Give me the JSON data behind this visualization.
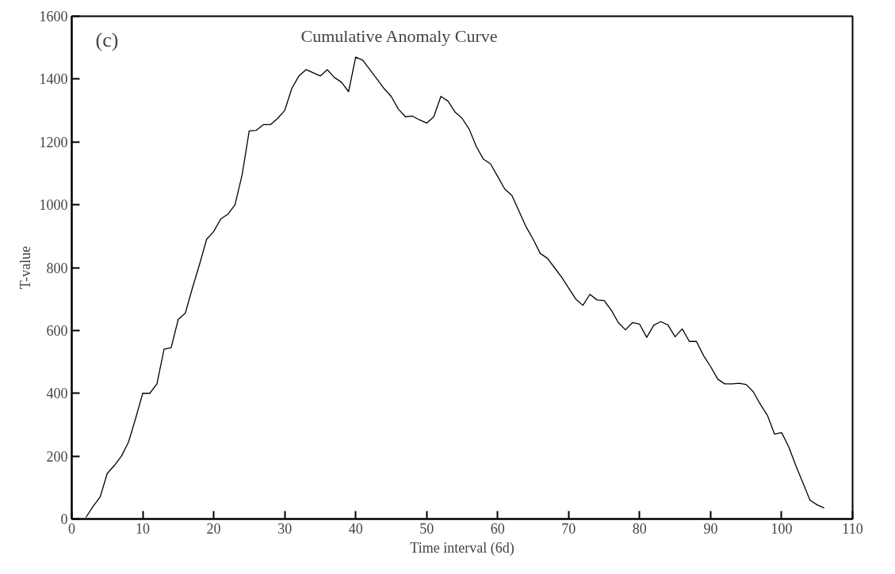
{
  "chart_data": {
    "type": "line",
    "title": "Cumulative Anomaly Curve",
    "xlabel": "Time interval (6d)",
    "ylabel": "T-value",
    "annotations": [
      "(c)"
    ],
    "x": [
      2,
      3,
      4,
      5,
      6,
      7,
      8,
      9,
      10,
      11,
      12,
      13,
      14,
      15,
      16,
      17,
      18,
      19,
      20,
      21,
      22,
      23,
      24,
      25,
      26,
      27,
      28,
      29,
      30,
      31,
      32,
      33,
      34,
      35,
      36,
      37,
      38,
      39,
      40,
      41,
      42,
      43,
      44,
      45,
      46,
      47,
      48,
      49,
      50,
      51,
      52,
      53,
      54,
      55,
      56,
      57,
      58,
      59,
      60,
      61,
      62,
      63,
      64,
      65,
      66,
      67,
      68,
      69,
      70,
      71,
      72,
      73,
      74,
      75,
      76,
      77,
      78,
      79,
      80,
      81,
      82,
      83,
      84,
      85,
      86,
      87,
      88,
      89,
      90,
      91,
      92,
      93,
      94,
      95,
      96,
      97,
      98,
      99,
      100,
      101,
      102,
      103,
      104,
      105,
      106
    ],
    "series": [
      {
        "color": "#000000",
        "values": [
          5,
          40,
          70,
          145,
          170,
          200,
          245,
          320,
          400,
          400,
          430,
          540,
          545,
          635,
          655,
          735,
          810,
          890,
          915,
          955,
          970,
          1000,
          1095,
          1235,
          1237,
          1255,
          1255,
          1275,
          1300,
          1370,
          1410,
          1430,
          1420,
          1410,
          1430,
          1405,
          1390,
          1360,
          1470,
          1460,
          1430,
          1400,
          1370,
          1345,
          1305,
          1280,
          1282,
          1270,
          1260,
          1280,
          1345,
          1330,
          1295,
          1275,
          1240,
          1185,
          1145,
          1130,
          1090,
          1050,
          1030,
          980,
          930,
          890,
          845,
          830,
          800,
          770,
          735,
          700,
          680,
          715,
          697,
          695,
          665,
          625,
          602,
          625,
          620,
          578,
          617,
          628,
          617,
          580,
          605,
          565,
          565,
          520,
          485,
          445,
          430,
          430,
          432,
          428,
          405,
          365,
          330,
          270,
          275,
          230,
          170,
          115,
          60,
          45,
          35
        ]
      }
    ],
    "xlim": [
      0,
      110
    ],
    "xticks": [
      0,
      10,
      20,
      30,
      40,
      50,
      60,
      70,
      80,
      90,
      100,
      110
    ],
    "ylim": [
      0,
      1600
    ],
    "yticks": [
      0,
      200,
      400,
      600,
      800,
      1000,
      1200,
      1400,
      1600
    ],
    "grid": false,
    "marker": "none",
    "line_style": "solid"
  }
}
